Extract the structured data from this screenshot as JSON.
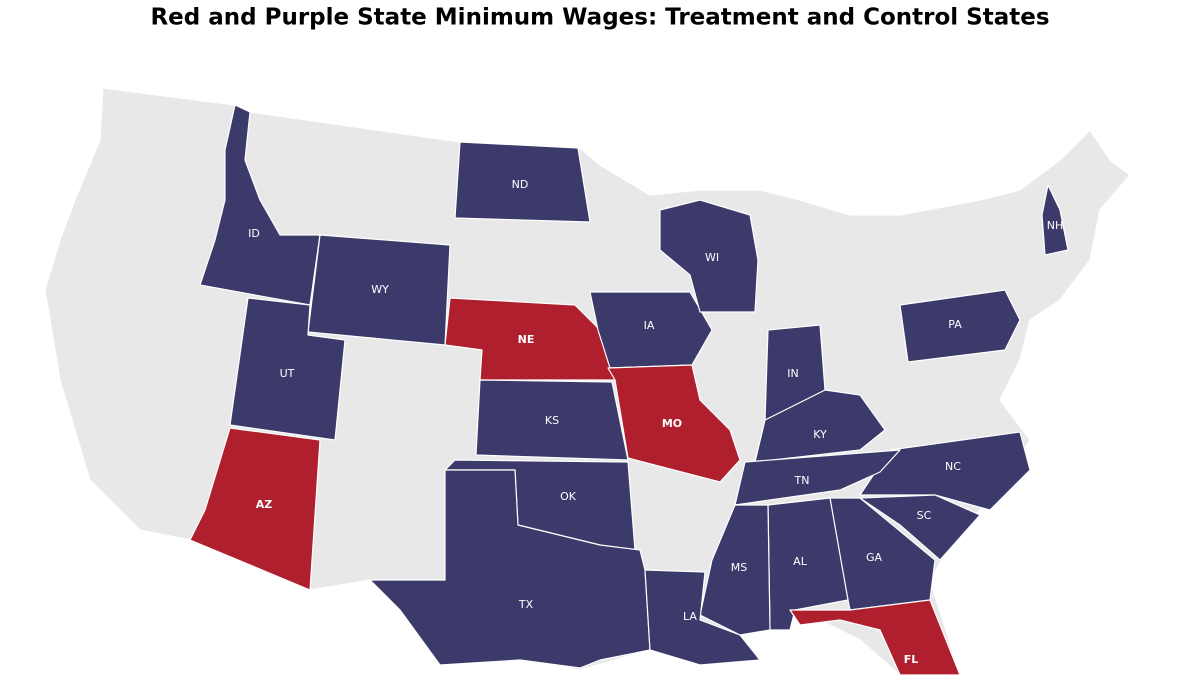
{
  "title": "Red and Purple State Minimum Wages: Treatment and Control States",
  "background_color": "#e8e8e8",
  "states": [
    {
      "label": "ND",
      "color": "#3b3a6b"
    },
    {
      "label": "ID",
      "color": "#3b3a6b"
    },
    {
      "label": "WY",
      "color": "#3b3a6b"
    },
    {
      "label": "NE",
      "color": "#b01f2e"
    },
    {
      "label": "IA",
      "color": "#3b3a6b"
    },
    {
      "label": "WI",
      "color": "#3b3a6b"
    },
    {
      "label": "NH",
      "color": "#3b3a6b"
    },
    {
      "label": "PA",
      "color": "#3b3a6b"
    },
    {
      "label": "UT",
      "color": "#3b3a6b"
    },
    {
      "label": "KS",
      "color": "#3b3a6b"
    },
    {
      "label": "MO",
      "color": "#b01f2e"
    },
    {
      "label": "IN",
      "color": "#3b3a6b"
    },
    {
      "label": "KY",
      "color": "#3b3a6b"
    },
    {
      "label": "NC",
      "color": "#3b3a6b"
    },
    {
      "label": "TN",
      "color": "#3b3a6b"
    },
    {
      "label": "AZ",
      "color": "#b01f2e"
    },
    {
      "label": "OK",
      "color": "#3b3a6b"
    },
    {
      "label": "SC",
      "color": "#3b3a6b"
    },
    {
      "label": "GA",
      "color": "#3b3a6b"
    },
    {
      "label": "AL",
      "color": "#3b3a6b"
    },
    {
      "label": "MS",
      "color": "#3b3a6b"
    },
    {
      "label": "TX",
      "color": "#3b3a6b"
    },
    {
      "label": "LA",
      "color": "#3b3a6b"
    },
    {
      "label": "FL",
      "color": "#b01f2e"
    }
  ]
}
